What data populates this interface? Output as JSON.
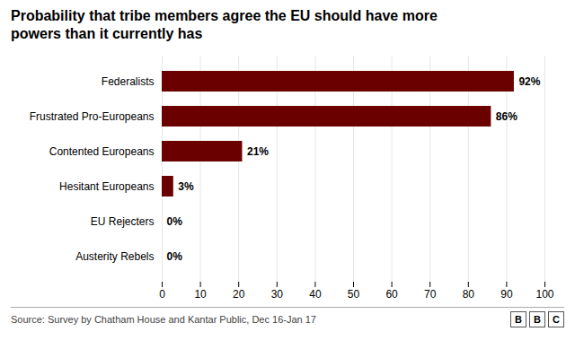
{
  "chart_data": {
    "type": "bar",
    "orientation": "horizontal",
    "title": "Probability that tribe members agree the EU should have more\npowers than it currently has",
    "source": "Source: Survey by Chatham House and Kantar Public, Dec 16-Jan 17",
    "annotations": [
      "BBC"
    ],
    "categories": [
      "Federalists",
      "Frustrated Pro-Europeans",
      "Contented Europeans",
      "Hesitant Europeans",
      "EU Rejecters",
      "Austerity Rebels"
    ],
    "values": [
      92,
      86,
      21,
      3,
      0,
      0
    ],
    "value_labels": [
      "92%",
      "86%",
      "21%",
      "3%",
      "0%",
      "0%"
    ],
    "data_labels": true,
    "color": "#6B0000",
    "xlim": [
      0,
      100
    ],
    "xticks": [
      0,
      10,
      20,
      30,
      40,
      50,
      60,
      70,
      80,
      90,
      100
    ],
    "grid": true
  }
}
